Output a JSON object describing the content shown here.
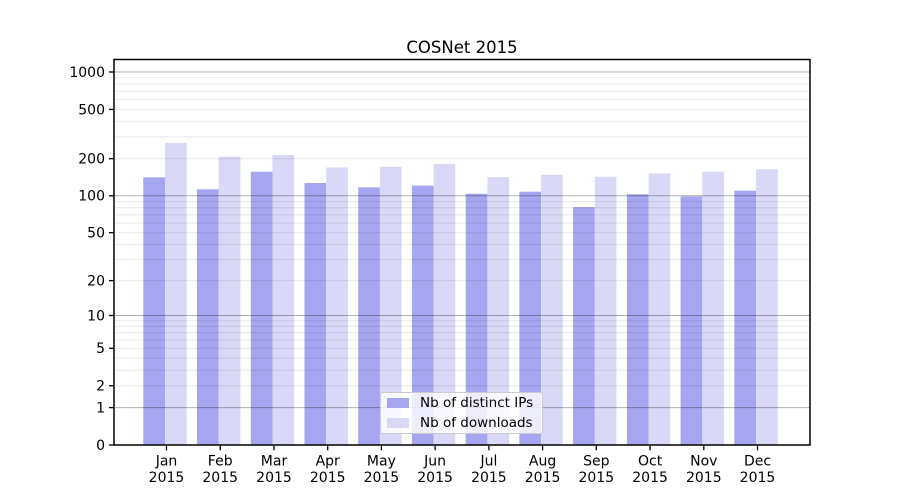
{
  "chart": {
    "title": "COSNet 2015"
  },
  "chart_data": {
    "type": "bar",
    "title": "COSNet 2015",
    "categories": [
      "Jan",
      "Feb",
      "Mar",
      "Apr",
      "May",
      "Jun",
      "Jul",
      "Aug",
      "Sep",
      "Oct",
      "Nov",
      "Dec"
    ],
    "category_year": "2015",
    "series": [
      {
        "name": "Nb of distinct IPs",
        "color": "#a5a5f0",
        "values": [
          141,
          113,
          157,
          127,
          117,
          121,
          104,
          108,
          81,
          103,
          99,
          110
        ]
      },
      {
        "name": "Nb of downloads",
        "color": "#d9d9f7",
        "values": [
          268,
          208,
          214,
          170,
          172,
          181,
          142,
          148,
          143,
          152,
          157,
          164
        ]
      }
    ],
    "yscale": "log(1+y)",
    "y_ticks": [
      0,
      1,
      2,
      5,
      10,
      20,
      50,
      100,
      200,
      500,
      1000
    ],
    "y_major_gridlines": [
      1,
      10,
      100,
      1000
    ],
    "ylim": [
      0,
      1260
    ],
    "xlabel": "",
    "ylabel": "",
    "grid": "on",
    "legend_position": "lower center"
  },
  "colors": {
    "bar_ips": "#a5a5f0",
    "bar_downloads": "#d9d9f7",
    "major_grid_rgba": "rgba(0,0,0,0.30)",
    "minor_grid_rgba": "rgba(0,0,0,0.085)",
    "axis": "#000000",
    "background": "#ffffff"
  }
}
